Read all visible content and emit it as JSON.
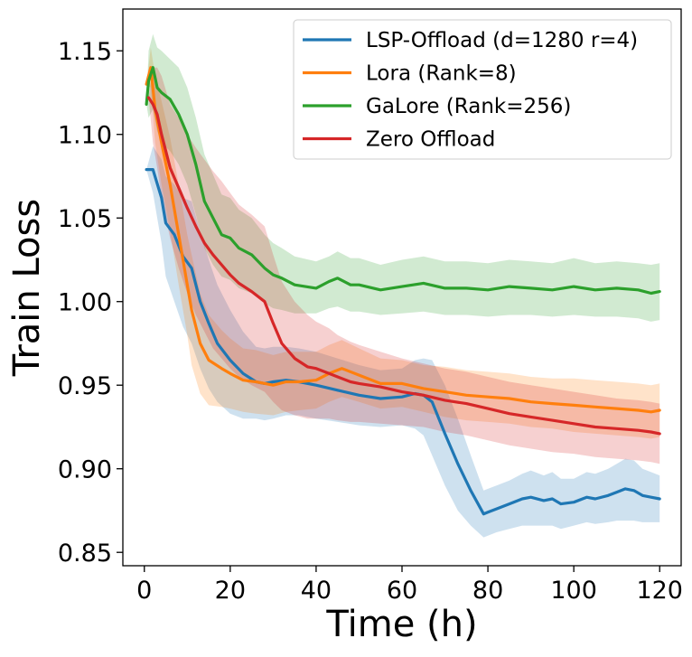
{
  "chart_data": {
    "type": "line",
    "title": "",
    "xlabel": "Time (h)",
    "ylabel": "Train Loss",
    "xlim": [
      -5,
      125
    ],
    "ylim": [
      0.842,
      1.175
    ],
    "xticks": [
      0,
      20,
      40,
      60,
      80,
      100,
      120
    ],
    "xtick_labels": [
      "0",
      "20",
      "40",
      "60",
      "80",
      "100",
      "120"
    ],
    "yticks": [
      0.85,
      0.9,
      0.95,
      1.0,
      1.05,
      1.1,
      1.15
    ],
    "ytick_labels": [
      "0.85",
      "0.90",
      "0.95",
      "1.00",
      "1.05",
      "1.10",
      "1.15"
    ],
    "grid": false,
    "legend_position": "top-right",
    "series": [
      {
        "name": "LSP-Offload (d=1280 r=4)",
        "color": "#1f77b4",
        "x": [
          0.5,
          2,
          4,
          5,
          7,
          9,
          11,
          13,
          15,
          17,
          20,
          23,
          26,
          28,
          30,
          33,
          36,
          40,
          45,
          50,
          55,
          60,
          63,
          65,
          67,
          70,
          73,
          76,
          79,
          80,
          82,
          85,
          88,
          90,
          93,
          95,
          97,
          100,
          103,
          105,
          108,
          110,
          112,
          114,
          116,
          118,
          120
        ],
        "y": [
          1.079,
          1.079,
          1.062,
          1.047,
          1.04,
          1.027,
          1.02,
          1.0,
          0.987,
          0.975,
          0.965,
          0.957,
          0.952,
          0.951,
          0.952,
          0.953,
          0.952,
          0.95,
          0.947,
          0.944,
          0.942,
          0.943,
          0.945,
          0.944,
          0.94,
          0.921,
          0.903,
          0.887,
          0.873,
          0.874,
          0.876,
          0.879,
          0.882,
          0.883,
          0.881,
          0.882,
          0.879,
          0.88,
          0.883,
          0.882,
          0.884,
          0.886,
          0.888,
          0.887,
          0.884,
          0.883,
          0.882
        ],
        "lower": [
          1.079,
          1.065,
          1.035,
          1.015,
          1.0,
          0.985,
          0.975,
          0.96,
          0.948,
          0.94,
          0.933,
          0.93,
          0.93,
          0.929,
          0.93,
          0.932,
          0.932,
          0.93,
          0.928,
          0.926,
          0.925,
          0.926,
          0.924,
          0.92,
          0.908,
          0.89,
          0.875,
          0.866,
          0.859,
          0.86,
          0.862,
          0.864,
          0.866,
          0.866,
          0.866,
          0.866,
          0.864,
          0.866,
          0.868,
          0.867,
          0.868,
          0.869,
          0.869,
          0.869,
          0.868,
          0.868,
          0.868
        ],
        "upper": [
          1.079,
          1.093,
          1.085,
          1.075,
          1.07,
          1.062,
          1.06,
          1.042,
          1.025,
          1.01,
          0.995,
          0.982,
          0.973,
          0.972,
          0.973,
          0.973,
          0.972,
          0.97,
          0.966,
          0.962,
          0.959,
          0.96,
          0.965,
          0.966,
          0.965,
          0.95,
          0.93,
          0.908,
          0.887,
          0.888,
          0.89,
          0.893,
          0.897,
          0.899,
          0.896,
          0.898,
          0.894,
          0.894,
          0.898,
          0.897,
          0.9,
          0.903,
          0.906,
          0.905,
          0.9,
          0.898,
          0.896
        ]
      },
      {
        "name": "Lora (Rank=8)",
        "color": "#ff7f0e",
        "x": [
          0.5,
          1.5,
          2.5,
          4,
          6,
          8,
          10,
          11,
          13,
          15,
          18,
          20,
          23,
          26,
          30,
          33,
          36,
          40,
          43,
          46,
          50,
          55,
          60,
          65,
          70,
          75,
          80,
          85,
          90,
          95,
          100,
          105,
          110,
          115,
          118,
          120
        ],
        "y": [
          1.13,
          1.14,
          1.115,
          1.095,
          1.07,
          1.04,
          1.01,
          0.995,
          0.975,
          0.965,
          0.96,
          0.957,
          0.953,
          0.952,
          0.95,
          0.952,
          0.952,
          0.953,
          0.957,
          0.96,
          0.956,
          0.951,
          0.951,
          0.948,
          0.946,
          0.944,
          0.943,
          0.942,
          0.94,
          0.939,
          0.938,
          0.937,
          0.936,
          0.935,
          0.934,
          0.935
        ],
        "lower": [
          1.13,
          1.128,
          1.095,
          1.07,
          1.042,
          1.01,
          0.98,
          0.962,
          0.945,
          0.938,
          0.937,
          0.936,
          0.934,
          0.933,
          0.932,
          0.934,
          0.935,
          0.936,
          0.94,
          0.943,
          0.94,
          0.936,
          0.937,
          0.934,
          0.931,
          0.929,
          0.928,
          0.927,
          0.925,
          0.924,
          0.922,
          0.921,
          0.92,
          0.919,
          0.918,
          0.919
        ],
        "upper": [
          1.13,
          1.152,
          1.135,
          1.12,
          1.098,
          1.07,
          1.04,
          1.028,
          1.005,
          0.992,
          0.983,
          0.978,
          0.972,
          0.971,
          0.968,
          0.97,
          0.97,
          0.97,
          0.974,
          0.977,
          0.972,
          0.966,
          0.965,
          0.962,
          0.961,
          0.959,
          0.958,
          0.957,
          0.955,
          0.954,
          0.954,
          0.953,
          0.952,
          0.951,
          0.95,
          0.951
        ]
      },
      {
        "name": "GaLore (Rank=256)",
        "color": "#2ca02c",
        "x": [
          0.5,
          1,
          2,
          3,
          4,
          6,
          8,
          10,
          12,
          14,
          16,
          18,
          20,
          22,
          25,
          28,
          30,
          32,
          35,
          40,
          43,
          45,
          48,
          50,
          55,
          60,
          65,
          70,
          75,
          80,
          85,
          90,
          95,
          100,
          105,
          110,
          115,
          118,
          120
        ],
        "y": [
          1.118,
          1.132,
          1.14,
          1.128,
          1.125,
          1.121,
          1.112,
          1.1,
          1.082,
          1.06,
          1.05,
          1.04,
          1.038,
          1.032,
          1.028,
          1.02,
          1.016,
          1.014,
          1.01,
          1.008,
          1.012,
          1.014,
          1.01,
          1.01,
          1.007,
          1.009,
          1.011,
          1.008,
          1.008,
          1.007,
          1.009,
          1.008,
          1.007,
          1.009,
          1.007,
          1.008,
          1.007,
          1.005,
          1.006
        ],
        "lower": [
          1.118,
          1.11,
          1.115,
          1.102,
          1.095,
          1.09,
          1.082,
          1.07,
          1.052,
          1.032,
          1.022,
          1.015,
          1.013,
          1.008,
          1.005,
          0.999,
          0.996,
          0.995,
          0.993,
          0.993,
          0.996,
          0.997,
          0.994,
          0.994,
          0.992,
          0.993,
          0.994,
          0.992,
          0.992,
          0.991,
          0.992,
          0.992,
          0.991,
          0.992,
          0.991,
          0.991,
          0.99,
          0.988,
          0.989
        ],
        "upper": [
          1.118,
          1.15,
          1.16,
          1.152,
          1.15,
          1.145,
          1.14,
          1.128,
          1.11,
          1.088,
          1.076,
          1.064,
          1.062,
          1.055,
          1.05,
          1.04,
          1.035,
          1.032,
          1.027,
          1.024,
          1.027,
          1.03,
          1.026,
          1.026,
          1.022,
          1.025,
          1.027,
          1.024,
          1.024,
          1.023,
          1.025,
          1.024,
          1.023,
          1.026,
          1.023,
          1.024,
          1.023,
          1.022,
          1.023
        ]
      },
      {
        "name": "Zero Offload",
        "color": "#d62728",
        "x": [
          1,
          2,
          3,
          4,
          6,
          8,
          10,
          12,
          14,
          16,
          18,
          20,
          22,
          25,
          28,
          30,
          32,
          35,
          38,
          40,
          43,
          45,
          48,
          50,
          55,
          60,
          65,
          70,
          75,
          80,
          85,
          90,
          95,
          100,
          105,
          110,
          115,
          118,
          120
        ],
        "y": [
          1.122,
          1.118,
          1.112,
          1.1,
          1.08,
          1.068,
          1.056,
          1.045,
          1.035,
          1.028,
          1.022,
          1.016,
          1.011,
          1.006,
          1.0,
          0.987,
          0.975,
          0.966,
          0.961,
          0.96,
          0.957,
          0.955,
          0.952,
          0.951,
          0.949,
          0.946,
          0.944,
          0.941,
          0.939,
          0.936,
          0.933,
          0.931,
          0.929,
          0.927,
          0.925,
          0.924,
          0.923,
          0.922,
          0.921
        ],
        "lower": [
          1.122,
          1.095,
          1.08,
          1.062,
          1.038,
          1.02,
          1.005,
          0.992,
          0.982,
          0.972,
          0.966,
          0.96,
          0.955,
          0.95,
          0.946,
          0.94,
          0.935,
          0.932,
          0.93,
          0.93,
          0.93,
          0.929,
          0.928,
          0.928,
          0.927,
          0.926,
          0.925,
          0.922,
          0.92,
          0.917,
          0.914,
          0.912,
          0.91,
          0.909,
          0.907,
          0.906,
          0.905,
          0.904,
          0.903
        ],
        "upper": [
          1.122,
          1.14,
          1.14,
          1.135,
          1.118,
          1.11,
          1.1,
          1.092,
          1.085,
          1.078,
          1.072,
          1.065,
          1.058,
          1.052,
          1.045,
          1.028,
          1.012,
          1.0,
          0.992,
          0.988,
          0.984,
          0.98,
          0.976,
          0.974,
          0.97,
          0.966,
          0.963,
          0.96,
          0.958,
          0.955,
          0.952,
          0.95,
          0.948,
          0.946,
          0.944,
          0.942,
          0.941,
          0.94,
          0.939
        ]
      }
    ]
  }
}
